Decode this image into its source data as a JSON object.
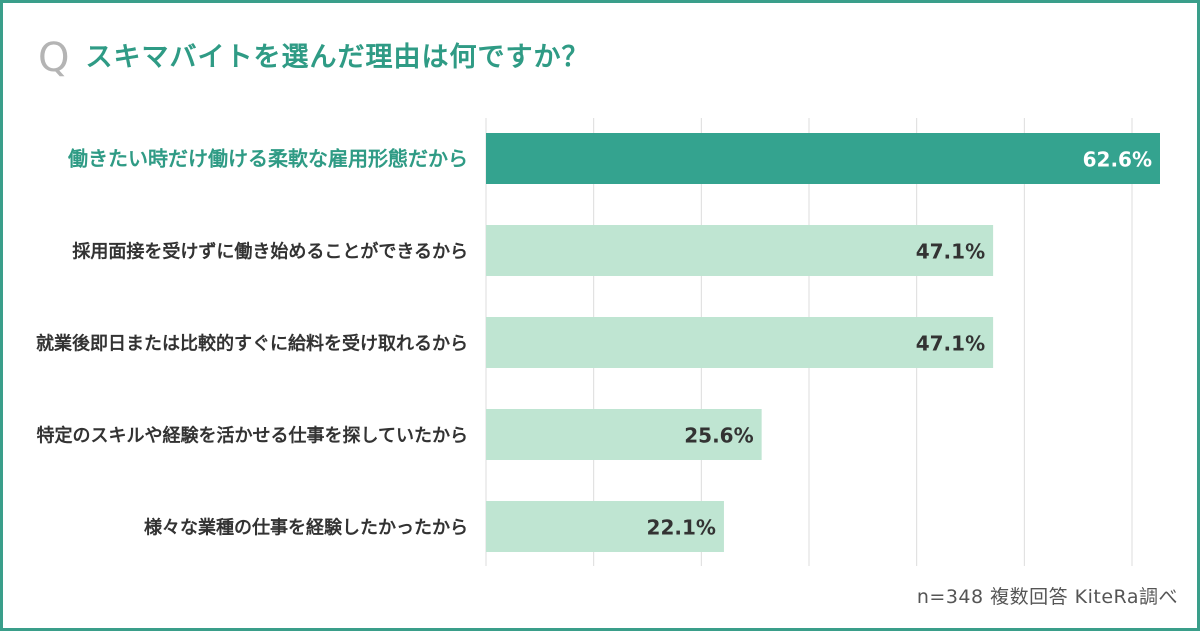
{
  "title": {
    "q_mark": "Q",
    "text": "スキマバイトを選んだ理由は何ですか？"
  },
  "footnote": "n=348 複数回答 KiteRa調べ",
  "colors": {
    "frame": "#3a9e8a",
    "title": "#2f9b85",
    "highlight_bar": "#34a38f",
    "bar": "#bfe5d2",
    "highlight_label": "#2f9b85",
    "label": "#333333",
    "grid": "#dcdcdc"
  },
  "chart_data": {
    "type": "bar",
    "orientation": "horizontal",
    "categories": [
      "働きたい時だけ働ける柔軟な雇用形態だから",
      "採用面接を受けずに働き始めることができるから",
      "就業後即日または比較的すぐに給料を受け取れるから",
      "特定のスキルや経験を活かせる仕事を探していたから",
      "様々な業種の仕事を経験したかったから"
    ],
    "values": [
      62.6,
      47.1,
      47.1,
      25.6,
      22.1
    ],
    "value_labels": [
      "62.6%",
      "47.1%",
      "47.1%",
      "25.6%",
      "22.1%"
    ],
    "unit": "%",
    "xlim": [
      0,
      65
    ],
    "grid": true,
    "highlight_index": 0
  }
}
